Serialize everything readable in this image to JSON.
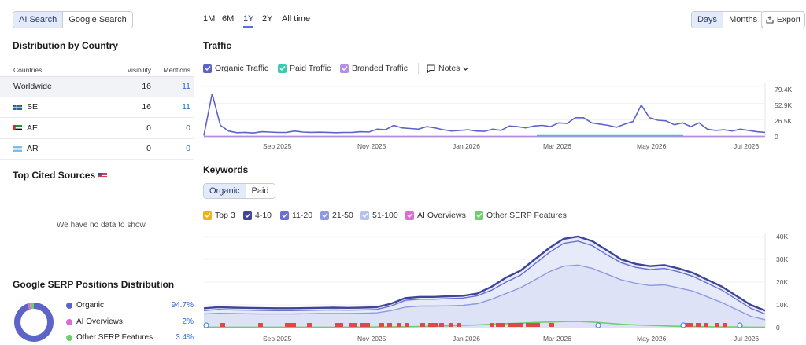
{
  "search_toggle": {
    "ai": "AI Search",
    "google": "Google Search"
  },
  "distribution": {
    "title": "Distribution by Country",
    "headers": {
      "country": "Countries",
      "visibility": "Visibility",
      "mentions": "Mentions"
    },
    "rows": [
      {
        "name": "Worldwide",
        "flag": "",
        "visibility": "16",
        "mentions": "11"
      },
      {
        "name": "SE",
        "flag": "se",
        "visibility": "16",
        "mentions": "11"
      },
      {
        "name": "AE",
        "flag": "ae",
        "visibility": "0",
        "mentions": "0"
      },
      {
        "name": "AR",
        "flag": "ar",
        "visibility": "0",
        "mentions": "0"
      }
    ]
  },
  "top_cited": {
    "title": "Top Cited Sources",
    "empty": "We have no data to show."
  },
  "serp": {
    "title": "Google SERP Positions Distribution",
    "items": [
      {
        "label": "Organic",
        "pct": "94.7%",
        "color": "#5d64c8",
        "value": 94.7
      },
      {
        "label": "AI Overviews",
        "pct": "2%",
        "color": "#e06ad6",
        "value": 2
      },
      {
        "label": "Other SERP Features",
        "pct": "3.4%",
        "color": "#6fcf6f",
        "value": 3.4
      }
    ]
  },
  "periods": [
    "1M",
    "6M",
    "1Y",
    "2Y",
    "All time"
  ],
  "active_period": "1Y",
  "granularity": {
    "days": "Days",
    "months": "Months"
  },
  "export_label": "Export",
  "traffic": {
    "title": "Traffic",
    "filters": [
      {
        "label": "Organic Traffic",
        "color": "#5d64c8"
      },
      {
        "label": "Paid Traffic",
        "color": "#3ec9b0"
      },
      {
        "label": "Branded Traffic",
        "color": "#b48ee6"
      }
    ],
    "notes_label": "Notes",
    "chart_data": {
      "type": "line",
      "y_ticks": [
        "79.4K",
        "52.9K",
        "26.5K",
        "0"
      ],
      "x_ticks": [
        "Sep 2025",
        "Nov 2025",
        "Jan 2026",
        "Mar 2026",
        "May 2026",
        "Jul 2026"
      ],
      "series": [
        {
          "name": "Organic Traffic",
          "color": "#5d64c8",
          "values": [
            2000,
            68000,
            18000,
            9000,
            6500,
            7000,
            6000,
            8000,
            7500,
            6800,
            7000,
            9000,
            7500,
            7000,
            7200,
            7000,
            6500,
            6800,
            7000,
            8000,
            7500,
            12000,
            11000,
            18000,
            14000,
            13000,
            12000,
            16000,
            14000,
            11000,
            9000,
            10000,
            11000,
            9000,
            8500,
            12000,
            10000,
            17000,
            16000,
            14000,
            17000,
            18000,
            16000,
            22000,
            21000,
            30000,
            30000,
            22000,
            20000,
            18000,
            15000,
            20000,
            24000,
            50000,
            30000,
            26000,
            25000,
            19000,
            22000,
            16000,
            22000,
            12000,
            10000,
            11000,
            9000,
            12000,
            10000,
            8000,
            7000
          ]
        },
        {
          "name": "Paid Traffic",
          "color": "#3ec9b0",
          "values": [
            0,
            0,
            0,
            0,
            0,
            0,
            0,
            0,
            0,
            0,
            0,
            0,
            0,
            0,
            0,
            0,
            0,
            0,
            0,
            0,
            0,
            0,
            0,
            0,
            0,
            0,
            0,
            0,
            0,
            0,
            0,
            0,
            0,
            0,
            0,
            0,
            0,
            0,
            0,
            0,
            0,
            0,
            0,
            0,
            0,
            0,
            0,
            0,
            0,
            0,
            0,
            0,
            0,
            0,
            0,
            0,
            0,
            0,
            0,
            0,
            0,
            0,
            0,
            0,
            0,
            0,
            0,
            0,
            0
          ]
        },
        {
          "name": "Branded Traffic",
          "color": "#b48ee6",
          "values": [
            0,
            0,
            0,
            0,
            0,
            0,
            0,
            0,
            0,
            0,
            0,
            0,
            0,
            0,
            0,
            0,
            0,
            0,
            0,
            0,
            0,
            0,
            0,
            0,
            0,
            0,
            0,
            0,
            0,
            0,
            0,
            0,
            0,
            0,
            0,
            0,
            0,
            0,
            0,
            0,
            0,
            0,
            0,
            0,
            0,
            0,
            0,
            0,
            0,
            0,
            0,
            0,
            0,
            0,
            0,
            0,
            0,
            0,
            0,
            0,
            0,
            0,
            0,
            0,
            0,
            0,
            0,
            0,
            0
          ]
        }
      ],
      "ylim": [
        0,
        79400
      ]
    }
  },
  "keywords": {
    "title": "Keywords",
    "tabs": {
      "organic": "Organic",
      "paid": "Paid"
    },
    "filters": [
      {
        "label": "Top 3",
        "color": "#f0b020"
      },
      {
        "label": "4-10",
        "color": "#3e4596"
      },
      {
        "label": "11-20",
        "color": "#6a70d0"
      },
      {
        "label": "21-50",
        "color": "#8e9ae0"
      },
      {
        "label": "51-100",
        "color": "#b4c2f0"
      },
      {
        "label": "AI Overviews",
        "color": "#e06ad6"
      },
      {
        "label": "Other SERP Features",
        "color": "#6fcf6f"
      }
    ],
    "chart_data": {
      "type": "area",
      "y_ticks": [
        "40K",
        "30K",
        "20K",
        "10K",
        "0"
      ],
      "x_ticks": [
        "Sep 2025",
        "Nov 2025",
        "Jan 2026",
        "Mar 2026",
        "May 2026",
        "Jul 2026"
      ],
      "ylim": [
        0,
        40000
      ],
      "series": [
        {
          "name": "4-10",
          "color": "#3e4596",
          "values": [
            8500,
            9000,
            8800,
            8700,
            8600,
            8500,
            8500,
            8600,
            8700,
            8800,
            8700,
            8800,
            9000,
            10500,
            13000,
            13500,
            13500,
            13800,
            14000,
            15000,
            18000,
            22000,
            25000,
            30000,
            35000,
            39000,
            40000,
            38000,
            34000,
            30000,
            28000,
            27000,
            27500,
            26000,
            24000,
            21000,
            18000,
            14000,
            10000,
            7500
          ]
        },
        {
          "name": "11-20",
          "color": "#6a70d0",
          "values": [
            7500,
            8000,
            7800,
            7700,
            7600,
            7500,
            7500,
            7600,
            7700,
            7800,
            7700,
            7800,
            8000,
            9500,
            12000,
            12500,
            12500,
            12800,
            13000,
            14000,
            16500,
            20000,
            23000,
            28000,
            33000,
            37000,
            38000,
            36000,
            32000,
            28500,
            26500,
            25500,
            26000,
            24500,
            22500,
            19500,
            16500,
            12500,
            8500,
            6000
          ]
        },
        {
          "name": "21-50",
          "color": "#8e9ae0",
          "values": [
            6000,
            6300,
            6200,
            6100,
            6000,
            6000,
            6000,
            6100,
            6200,
            6200,
            6200,
            6300,
            6500,
            7500,
            9000,
            9500,
            9500,
            9600,
            9800,
            10500,
            12500,
            15000,
            17500,
            21000,
            24500,
            27000,
            27500,
            26000,
            23500,
            21000,
            19500,
            18500,
            18800,
            17500,
            16000,
            13500,
            11000,
            8000,
            5000,
            3500
          ]
        },
        {
          "name": "Other SERP Features",
          "color": "#6fcf6f",
          "values": [
            200,
            200,
            200,
            200,
            200,
            200,
            200,
            200,
            200,
            200,
            200,
            200,
            300,
            300,
            400,
            500,
            600,
            800,
            1000,
            1200,
            1500,
            1800,
            2000,
            2300,
            2500,
            2700,
            2800,
            2500,
            2000,
            1500,
            1200,
            1000,
            800,
            600,
            500,
            400,
            300,
            300,
            200,
            200
          ]
        }
      ]
    }
  }
}
